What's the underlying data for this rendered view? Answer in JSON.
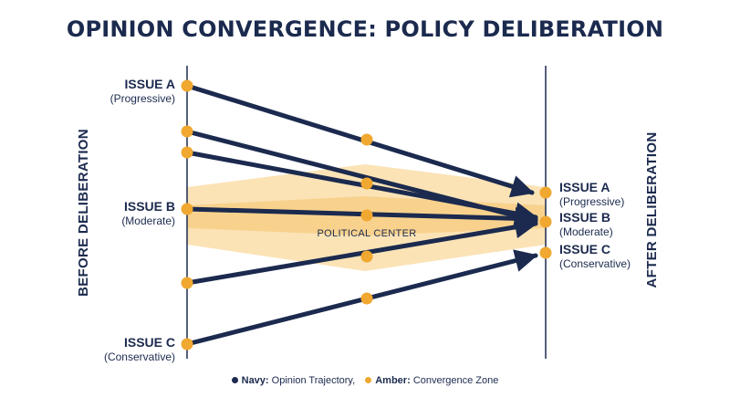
{
  "title": "OPINION CONVERGENCE: POLICY DELIBERATION",
  "left_axis_label": "BEFORE DELIBERATION",
  "right_axis_label": "AFTER DELIBERATION",
  "center_label": "POLITICAL CENTER",
  "colors": {
    "navy": "#1b2a4e",
    "amber": "#f0a830",
    "band_light": "#fbe3b6",
    "band_mid": "#f7cf86"
  },
  "left_labels": [
    {
      "name": "ISSUE A",
      "sub": "(Progressive)"
    },
    {
      "name": "ISSUE B",
      "sub": "(Moderate)"
    },
    {
      "name": "ISSUE C",
      "sub": "(Conservative)"
    }
  ],
  "right_labels": [
    {
      "name": "ISSUE A",
      "sub": "(Progressive)"
    },
    {
      "name": "ISSUE B",
      "sub": "(Moderate)"
    },
    {
      "name": "ISSUE C",
      "sub": "(Conservative)"
    }
  ],
  "legend": [
    {
      "key": "Navy:",
      "text": "Opinion Trajectory,",
      "color": "#1b2a4e"
    },
    {
      "key": "Amber:",
      "text": "Convergence Zone",
      "color": "#f0a830"
    }
  ]
}
